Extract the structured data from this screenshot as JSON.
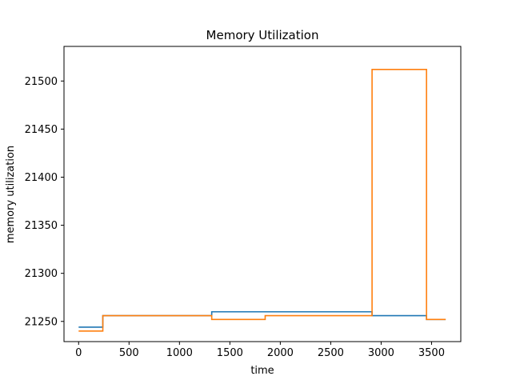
{
  "chart_data": {
    "type": "line",
    "title": "Memory Utilization",
    "xlabel": "time",
    "ylabel": "memory utilization",
    "xlim": [
      -145,
      3790
    ],
    "ylim": [
      21229,
      21536
    ],
    "xticks": [
      0,
      500,
      1000,
      1500,
      2000,
      2500,
      3000,
      3500
    ],
    "yticks": [
      21250,
      21300,
      21350,
      21400,
      21450,
      21500
    ],
    "grid": false,
    "legend": "none",
    "series": [
      {
        "color": "#1f77b4",
        "step": "post",
        "x": [
          0,
          240,
          1320,
          2910,
          3450,
          3640
        ],
        "y": [
          21244,
          21256,
          21260,
          21256,
          21252,
          21252
        ]
      },
      {
        "color": "#ff7f0e",
        "step": "post",
        "x": [
          0,
          240,
          1320,
          1850,
          2910,
          3450,
          3640
        ],
        "y": [
          21240,
          21256,
          21252,
          21256,
          21512,
          21252,
          21252
        ]
      }
    ]
  }
}
